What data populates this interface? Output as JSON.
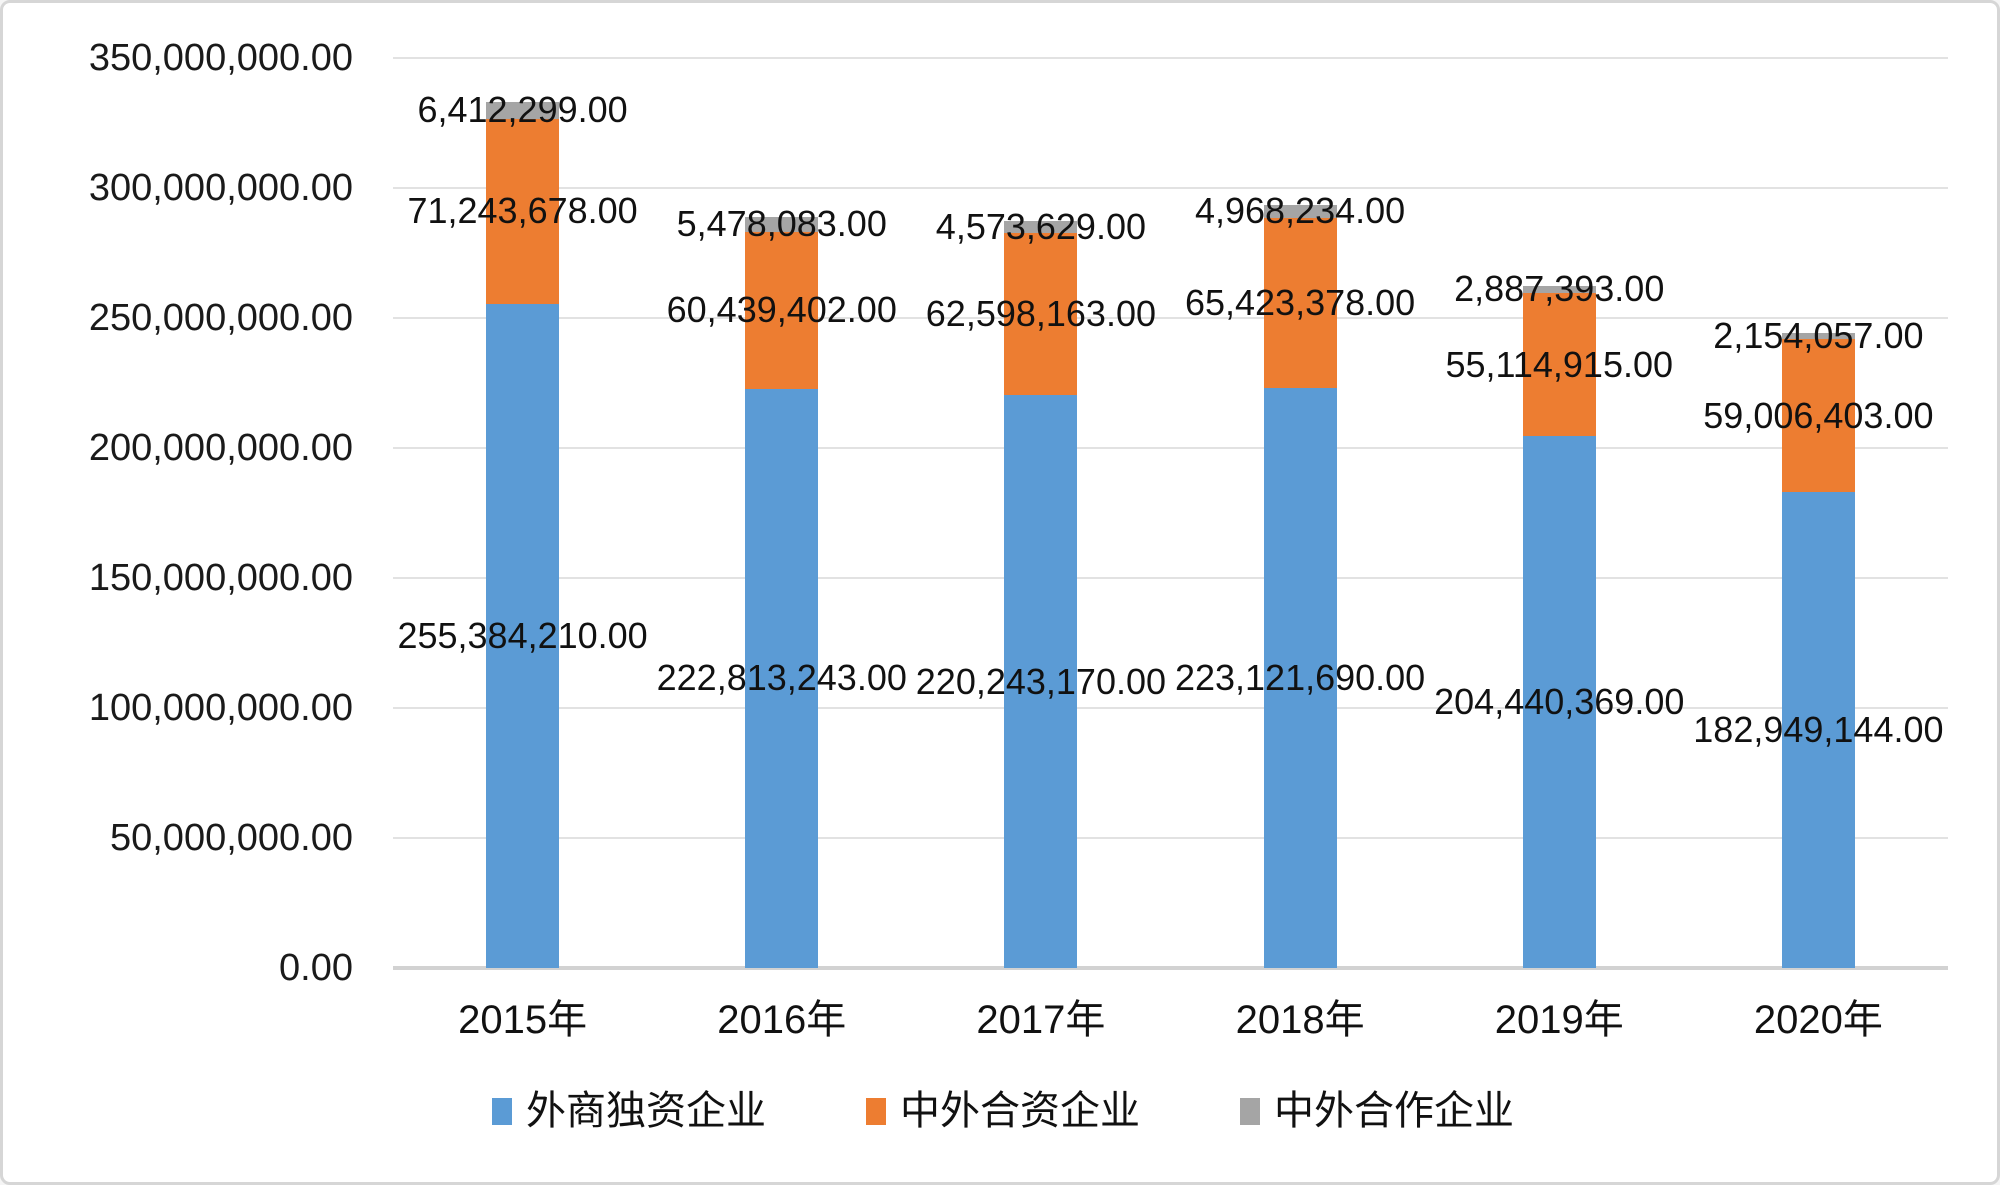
{
  "chart_data": {
    "type": "bar",
    "stacked": true,
    "orientation": "vertical",
    "title": "",
    "categories": [
      "2015年",
      "2016年",
      "2017年",
      "2018年",
      "2019年",
      "2020年"
    ],
    "series": [
      {
        "name": "外商独资企业",
        "color": "#5B9BD5",
        "values": [
          255384210,
          222813243,
          220243170,
          223121690,
          204440369,
          182949144
        ],
        "labels": [
          "255,384,210.00",
          "222,813,243.00",
          "220,243,170.00",
          "223,121,690.00",
          "204,440,369.00",
          "182,949,144.00"
        ]
      },
      {
        "name": "中外合资企业",
        "color": "#ED7D31",
        "values": [
          71243678,
          60439402,
          62598163,
          65423378,
          55114915,
          59006403
        ],
        "labels": [
          "71,243,678.00",
          "60,439,402.00",
          "62,598,163.00",
          "65,423,378.00",
          "55,114,915.00",
          "59,006,403.00"
        ]
      },
      {
        "name": "中外合作企业",
        "color": "#A5A5A5",
        "values": [
          6412299,
          5478083,
          4573629,
          4968234,
          2887393,
          2154057
        ],
        "labels": [
          "6,412,299.00",
          "5,478,083.00",
          "4,573,629.00",
          "4,968,234.00",
          "2,887,393.00",
          "2,154,057.00"
        ]
      }
    ],
    "y_axis": {
      "min": 0,
      "max": 350000000,
      "step": 50000000,
      "tick_labels": [
        "0.00",
        "50,000,000.00",
        "100,000,000.00",
        "150,000,000.00",
        "200,000,000.00",
        "250,000,000.00",
        "300,000,000.00",
        "350,000,000.00"
      ]
    },
    "x_axis": {
      "tick_suffix": "年"
    },
    "legend_position": "bottom",
    "grid": true,
    "data_labels_visible": true,
    "colors": {
      "gridline": "#E2E2E2",
      "axis_line": "#D2D2D2",
      "text": "#111111",
      "background": "#FFFFFF",
      "frame_border": "#D6D6D6"
    }
  }
}
